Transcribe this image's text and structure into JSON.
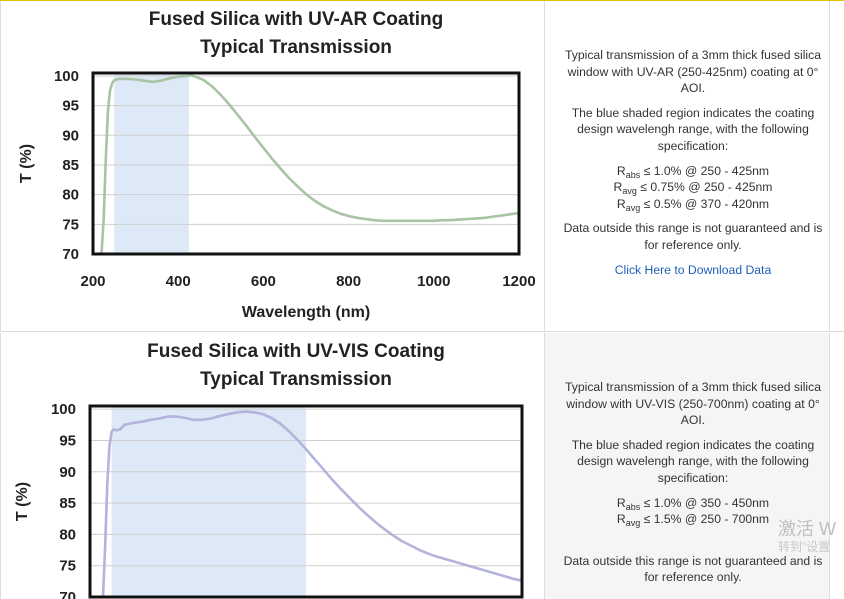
{
  "sections": [
    {
      "chart_data": {
        "type": "line",
        "title": "Fused Silica with UV-AR Coating",
        "subtitle": "Typical Transmission",
        "xlabel": "Wavelength (nm)",
        "ylabel": "T (%)",
        "xlim": [
          200,
          1200
        ],
        "ylim": [
          70,
          100.5
        ],
        "x_ticks": [
          200,
          400,
          600,
          800,
          1000,
          1200
        ],
        "y_ticks": [
          70,
          75,
          80,
          85,
          90,
          95,
          100
        ],
        "shaded_range": [
          250,
          425
        ],
        "shade_color": "#dde9f6",
        "line_color": "#a8c4a4",
        "grid": true,
        "legend": "none",
        "x": [
          220,
          225,
          230,
          235,
          240,
          245,
          250,
          260,
          280,
          300,
          320,
          340,
          360,
          380,
          400,
          420,
          430,
          440,
          460,
          480,
          500,
          520,
          540,
          560,
          580,
          600,
          620,
          640,
          660,
          680,
          700,
          720,
          740,
          760,
          780,
          800,
          820,
          840,
          860,
          880,
          900,
          920,
          940,
          960,
          980,
          1000,
          1020,
          1040,
          1060,
          1080,
          1100,
          1120,
          1140,
          1160,
          1180,
          1200
        ],
        "y": [
          70,
          76,
          86,
          94,
          97.5,
          98.8,
          99.3,
          99.5,
          99.5,
          99.4,
          99.2,
          99.0,
          99.2,
          99.6,
          99.9,
          100.0,
          100.1,
          99.9,
          99.3,
          98.2,
          96.8,
          95.2,
          93.4,
          91.6,
          89.7,
          87.9,
          86.1,
          84.4,
          82.8,
          81.4,
          80.1,
          79.0,
          78.1,
          77.4,
          76.8,
          76.4,
          76.1,
          75.9,
          75.7,
          75.6,
          75.6,
          75.6,
          75.6,
          75.6,
          75.6,
          75.6,
          75.7,
          75.7,
          75.8,
          75.9,
          76.0,
          76.1,
          76.3,
          76.5,
          76.7,
          76.9
        ]
      },
      "description": {
        "intro": "Typical transmission of a 3mm thick fused silica window with UV-AR (250-425nm) coating at 0° AOI.",
        "shading": "The blue shaded region indicates the coating design wavelengh range, with the following specification:",
        "specs": [
          {
            "symbol": "R",
            "sub": "abs",
            "text": " ≤ 1.0% @ 250 - 425nm"
          },
          {
            "symbol": "R",
            "sub": "avg",
            "text": " ≤ 0.75% @ 250 - 425nm"
          },
          {
            "symbol": "R",
            "sub": "avg",
            "text": " ≤ 0.5% @ 370 - 420nm"
          }
        ],
        "disclaimer": "Data outside this range is not guaranteed and is for reference only.",
        "link": "Click Here to Download Data"
      }
    },
    {
      "chart_data": {
        "type": "line",
        "title": "Fused Silica with UV-VIS Coating",
        "subtitle": "Typical Transmission",
        "xlabel": "",
        "ylabel": "T (%)",
        "xlim": [
          200,
          1200
        ],
        "ylim": [
          70,
          100.5
        ],
        "x_ticks": [],
        "y_ticks": [
          70,
          75,
          80,
          85,
          90,
          95,
          100
        ],
        "shaded_range": [
          250,
          700
        ],
        "shade_color": "#dde9f6",
        "line_color": "#b3b3dc",
        "grid": true,
        "legend": "none",
        "x": [
          230,
          235,
          240,
          245,
          250,
          255,
          260,
          270,
          280,
          300,
          320,
          340,
          360,
          380,
          400,
          420,
          440,
          460,
          480,
          500,
          520,
          540,
          560,
          580,
          600,
          620,
          640,
          660,
          680,
          700,
          720,
          740,
          760,
          780,
          800,
          820,
          840,
          860,
          880,
          900,
          920,
          940,
          960,
          980,
          1000,
          1020,
          1040,
          1060,
          1080,
          1100,
          1120,
          1140,
          1160,
          1180,
          1200
        ],
        "y": [
          70,
          78,
          88,
          94,
          96.4,
          96.8,
          96.6,
          96.8,
          97.5,
          97.8,
          98.0,
          98.3,
          98.5,
          98.8,
          98.8,
          98.6,
          98.3,
          98.3,
          98.5,
          98.9,
          99.2,
          99.5,
          99.6,
          99.5,
          99.2,
          98.6,
          97.7,
          96.5,
          95.1,
          93.6,
          92.0,
          90.4,
          88.8,
          87.3,
          85.9,
          84.5,
          83.2,
          82.0,
          80.9,
          79.9,
          79.0,
          78.3,
          77.6,
          77.0,
          76.5,
          76.1,
          75.7,
          75.3,
          74.9,
          74.5,
          74.1,
          73.7,
          73.3,
          72.9,
          72.6
        ]
      },
      "description": {
        "intro": "Typical transmission of a 3mm thick fused silica window with UV-VIS (250-700nm) coating at 0° AOI.",
        "shading": "The blue shaded region indicates the coating design wavelengh range, with the following specification:",
        "specs": [
          {
            "symbol": "R",
            "sub": "abs",
            "text": " ≤ 1.0% @ 350 - 450nm"
          },
          {
            "symbol": "R",
            "sub": "avg",
            "text": " ≤ 1.5% @ 250 - 700nm"
          }
        ],
        "disclaimer": "Data outside this range is not guaranteed and is for reference only."
      }
    }
  ],
  "watermark": {
    "line1": "激活 W",
    "line2": "转到\"设置"
  }
}
